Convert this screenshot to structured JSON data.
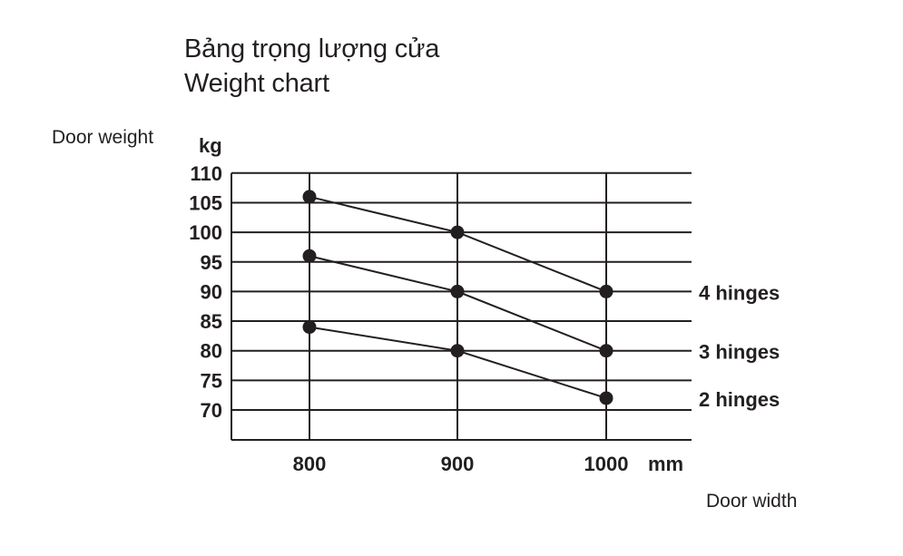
{
  "header": {
    "title_line1": "Bảng trọng lượng cửa",
    "title_line2": "Weight chart"
  },
  "chart_data": {
    "type": "line",
    "title": "Bảng trọng lượng cửa / Weight chart",
    "xlabel": "Door width",
    "ylabel": "Door weight",
    "x_unit": "mm",
    "y_unit": "kg",
    "x": [
      800,
      900,
      1000
    ],
    "x_ticks": [
      "800",
      "900",
      "1000"
    ],
    "y_ticks": [
      110,
      105,
      100,
      95,
      90,
      85,
      80,
      75,
      70
    ],
    "ylim": [
      65,
      110
    ],
    "grid": true,
    "series": [
      {
        "name": "4 hinges",
        "values": [
          106,
          100,
          90
        ]
      },
      {
        "name": "3 hinges",
        "values": [
          96,
          90,
          80
        ]
      },
      {
        "name": "2 hinges",
        "values": [
          84,
          80,
          72
        ]
      }
    ],
    "colors": {
      "line": "#231f20",
      "marker": "#231f20",
      "grid": "#231f20"
    }
  }
}
